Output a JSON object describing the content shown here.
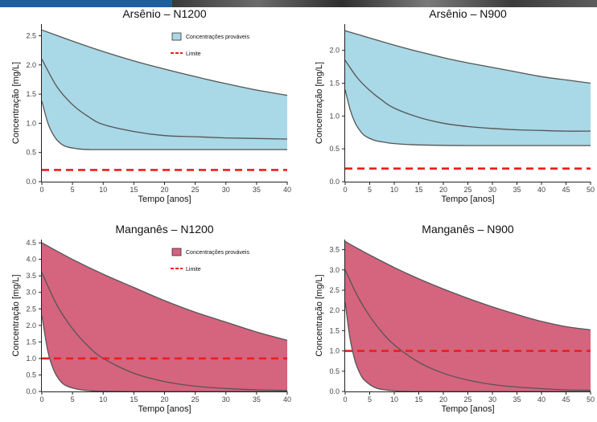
{
  "colors": {
    "arsenio": "#a9d8e6",
    "manganes": "#d5647f",
    "limit": "#ee1c1c",
    "line": "#555555",
    "photo_strip": "#1f5fa0"
  },
  "chart_data": [
    {
      "type": "area",
      "title": "Arsênio – N1200",
      "xlabel": "Tempo [anos]",
      "ylabel": "Concentração [mg/L]",
      "xlim": [
        0,
        40
      ],
      "ylim": [
        0,
        2.7
      ],
      "xticks": [
        0,
        5,
        10,
        15,
        20,
        25,
        30,
        35,
        40
      ],
      "yticks": [
        0,
        0.5,
        1,
        1.5,
        2,
        2.5
      ],
      "xticklabels": [
        "0",
        "5",
        "10",
        "15",
        "20",
        "25",
        "30",
        "35",
        "40"
      ],
      "yticklabels": [
        "0.0",
        "0.5",
        "1.0",
        "1.5",
        "2.0",
        "2.5"
      ],
      "fill": "#a9d8e6",
      "legend": true,
      "legend_entries": [
        "Concentrações prováveis",
        "Limite"
      ],
      "series": [
        {
          "role": "upper",
          "x": [
            0,
            5,
            10,
            15,
            20,
            25,
            30,
            35,
            40
          ],
          "y": [
            2.6,
            2.41,
            2.23,
            2.07,
            1.93,
            1.8,
            1.68,
            1.57,
            1.48
          ]
        },
        {
          "role": "median",
          "x": [
            0,
            2.5,
            5,
            7.5,
            10,
            15,
            20,
            25,
            30,
            35,
            40
          ],
          "y": [
            2.1,
            1.62,
            1.32,
            1.12,
            0.98,
            0.86,
            0.79,
            0.77,
            0.75,
            0.74,
            0.73
          ]
        },
        {
          "role": "lower",
          "x": [
            0,
            1,
            2,
            3,
            4,
            6,
            8,
            10,
            20,
            40
          ],
          "y": [
            1.38,
            1.0,
            0.78,
            0.66,
            0.6,
            0.56,
            0.55,
            0.55,
            0.55,
            0.55
          ]
        }
      ],
      "limit": 0.2
    },
    {
      "type": "area",
      "title": "Arsênio – N900",
      "xlabel": "Tempo [anos]",
      "ylabel": "Concentração [mg/L]",
      "xlim": [
        0,
        50
      ],
      "ylim": [
        0,
        2.4
      ],
      "xticks": [
        0,
        5,
        10,
        15,
        20,
        25,
        30,
        35,
        40,
        45,
        50
      ],
      "yticks": [
        0,
        0.5,
        1,
        1.5,
        2
      ],
      "xticklabels": [
        "0",
        "5",
        "10",
        "15",
        "20",
        "25",
        "30",
        "35",
        "40",
        "45",
        "50"
      ],
      "yticklabels": [
        "0.0",
        "0.5",
        "1.0",
        "1.5",
        "2.0"
      ],
      "fill": "#a9d8e6",
      "legend": false,
      "series": [
        {
          "role": "upper",
          "x": [
            0,
            5,
            10,
            15,
            20,
            25,
            30,
            35,
            40,
            45,
            50
          ],
          "y": [
            2.3,
            2.19,
            2.08,
            1.98,
            1.89,
            1.81,
            1.74,
            1.67,
            1.6,
            1.55,
            1.5
          ]
        },
        {
          "role": "median",
          "x": [
            0,
            2.5,
            5,
            7.5,
            10,
            15,
            20,
            25,
            30,
            35,
            40,
            45,
            50
          ],
          "y": [
            1.85,
            1.58,
            1.39,
            1.24,
            1.12,
            0.98,
            0.89,
            0.84,
            0.81,
            0.79,
            0.78,
            0.77,
            0.77
          ]
        },
        {
          "role": "lower",
          "x": [
            0,
            1,
            2,
            3,
            4,
            6,
            8,
            10,
            15,
            25,
            50
          ],
          "y": [
            1.4,
            1.1,
            0.9,
            0.78,
            0.7,
            0.63,
            0.6,
            0.58,
            0.56,
            0.55,
            0.55
          ]
        }
      ],
      "limit": 0.2
    },
    {
      "type": "area",
      "title": "Manganês – N1200",
      "xlabel": "Tempo [anos]",
      "ylabel": "Concentração [mg/L]",
      "xlim": [
        0,
        40
      ],
      "ylim": [
        0,
        4.6
      ],
      "xticks": [
        0,
        5,
        10,
        15,
        20,
        25,
        30,
        35,
        40
      ],
      "yticks": [
        0,
        0.5,
        1,
        1.5,
        2,
        2.5,
        3,
        3.5,
        4,
        4.5
      ],
      "xticklabels": [
        "0",
        "5",
        "10",
        "15",
        "20",
        "25",
        "30",
        "35",
        "40"
      ],
      "yticklabels": [
        "0.0",
        "0.5",
        "1.0",
        "1.5",
        "2.0",
        "2.5",
        "3.0",
        "3.5",
        "4.0",
        "4.5"
      ],
      "fill": "#d5647f",
      "legend": true,
      "legend_entries": [
        "Concentrações prováveis",
        "Limite"
      ],
      "series": [
        {
          "role": "upper",
          "x": [
            0,
            5,
            10,
            15,
            20,
            25,
            30,
            35,
            40
          ],
          "y": [
            4.5,
            4.0,
            3.55,
            3.15,
            2.75,
            2.4,
            2.1,
            1.8,
            1.55
          ]
        },
        {
          "role": "median",
          "x": [
            0,
            2.5,
            5,
            7.5,
            10,
            15,
            20,
            25,
            30,
            35,
            40
          ],
          "y": [
            3.6,
            2.6,
            1.9,
            1.38,
            1.0,
            0.55,
            0.3,
            0.16,
            0.09,
            0.05,
            0.03
          ]
        },
        {
          "role": "lower",
          "x": [
            0,
            1,
            2,
            3,
            4,
            6,
            8,
            10,
            15,
            40
          ],
          "y": [
            2.3,
            1.2,
            0.62,
            0.32,
            0.17,
            0.06,
            0.02,
            0.01,
            0,
            0
          ]
        }
      ],
      "limit": 1.0
    },
    {
      "type": "area",
      "title": "Manganês – N900",
      "xlabel": "Tempo [anos]",
      "ylabel": "Concentração [mg/L]",
      "xlim": [
        0,
        50
      ],
      "ylim": [
        0,
        3.75
      ],
      "xticks": [
        0,
        5,
        10,
        15,
        20,
        25,
        30,
        35,
        40,
        45,
        50
      ],
      "yticks": [
        0,
        0.5,
        1,
        1.5,
        2,
        2.5,
        3,
        3.5
      ],
      "xticklabels": [
        "0",
        "5",
        "10",
        "15",
        "20",
        "25",
        "30",
        "35",
        "40",
        "45",
        "50"
      ],
      "yticklabels": [
        "0.0",
        "0.5",
        "1.0",
        "1.5",
        "2.0",
        "2.5",
        "3.0",
        "3.5"
      ],
      "fill": "#d5647f",
      "legend": false,
      "series": [
        {
          "role": "upper",
          "x": [
            0,
            5,
            10,
            15,
            20,
            25,
            30,
            35,
            40,
            45,
            50
          ],
          "y": [
            3.7,
            3.37,
            3.06,
            2.78,
            2.53,
            2.3,
            2.09,
            1.9,
            1.73,
            1.6,
            1.52
          ]
        },
        {
          "role": "median",
          "x": [
            0,
            2.5,
            5,
            7.5,
            10,
            15,
            20,
            25,
            30,
            35,
            40,
            45,
            50
          ],
          "y": [
            3.0,
            2.36,
            1.86,
            1.46,
            1.15,
            0.72,
            0.45,
            0.28,
            0.17,
            0.11,
            0.07,
            0.04,
            0.03
          ]
        },
        {
          "role": "lower",
          "x": [
            0,
            1,
            2,
            3,
            4,
            6,
            8,
            10,
            15,
            50
          ],
          "y": [
            2.2,
            1.3,
            0.76,
            0.45,
            0.27,
            0.1,
            0.04,
            0.02,
            0,
            0
          ]
        }
      ],
      "limit": 1.0
    }
  ]
}
